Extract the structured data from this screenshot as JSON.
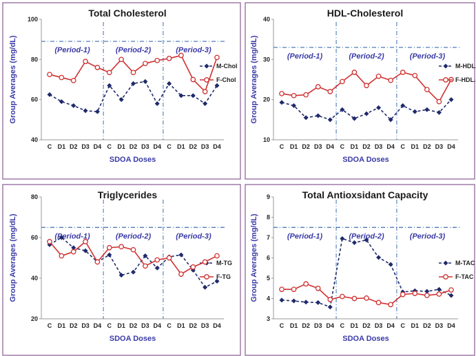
{
  "chart_data": [
    {
      "type": "line",
      "title": "Total Cholesterol",
      "xlabel": "SDOA Doses",
      "ylabel": "Group Averages (mg/dL)",
      "ylim": [
        40,
        100
      ],
      "yticks": [
        40,
        60,
        80,
        100
      ],
      "categories": [
        "C",
        "D1",
        "D2",
        "D3",
        "D4",
        "C",
        "D1",
        "D2",
        "D3",
        "D4",
        "C",
        "D1",
        "D2",
        "D3",
        "D4"
      ],
      "periods": [
        "(Period-1)",
        "(Period-2)",
        "(Period-3)"
      ],
      "reference_line": 89,
      "legend_position": "right",
      "series": [
        {
          "name": "M-Chol",
          "color": "#1f2a6b",
          "style": "dashed",
          "marker": "diamond",
          "values": [
            62.5,
            59,
            57,
            54.5,
            54,
            67,
            60,
            68,
            69,
            58,
            68,
            62,
            62,
            58,
            67
          ]
        },
        {
          "name": "F-Chol",
          "color": "#d03030",
          "style": "solid",
          "marker": "circle",
          "values": [
            72.5,
            71,
            69.5,
            79,
            76,
            73.5,
            80,
            73.5,
            78,
            79.5,
            80.5,
            82,
            70,
            64,
            81
          ]
        }
      ]
    },
    {
      "type": "line",
      "title": "HDL-Cholesterol",
      "xlabel": "SDOA Doses",
      "ylabel": "Group Averages (mg/dL)",
      "ylim": [
        10,
        40
      ],
      "yticks": [
        10,
        20,
        30,
        40
      ],
      "categories": [
        "C",
        "D1",
        "D2",
        "D3",
        "D4",
        "C",
        "D1",
        "D2",
        "D3",
        "D4",
        "C",
        "D1",
        "D2",
        "D3",
        "D4"
      ],
      "periods": [
        "(Period-1)",
        "(Period-2)",
        "(Period-3)"
      ],
      "reference_line": 33,
      "legend_position": "right",
      "series": [
        {
          "name": "M-HDL.C",
          "color": "#1f2a6b",
          "style": "dashed",
          "marker": "diamond",
          "values": [
            19.3,
            18.5,
            15.5,
            16,
            15,
            17.5,
            15.3,
            16.5,
            18,
            15,
            18.5,
            17,
            17.5,
            16.8,
            20
          ]
        },
        {
          "name": "F-HDL.C",
          "color": "#d03030",
          "style": "solid",
          "marker": "circle",
          "values": [
            21.5,
            21,
            21.2,
            23.2,
            22,
            24.5,
            26.8,
            23.5,
            25.8,
            24.8,
            26.8,
            26,
            22.5,
            19.5,
            25
          ]
        }
      ]
    },
    {
      "type": "line",
      "title": "Triglycerides",
      "xlabel": "SDOA Doses",
      "ylabel": "Group Averages (mg/dL)",
      "ylim": [
        20,
        80
      ],
      "yticks": [
        20,
        40,
        60,
        80
      ],
      "categories": [
        "C",
        "D1",
        "D2",
        "D3",
        "D4",
        "C",
        "D1",
        "D2",
        "D3",
        "D4",
        "C",
        "D1",
        "D2",
        "D3",
        "D4"
      ],
      "periods": [
        "(Period-1)",
        "(Period-2)",
        "(Period-3)"
      ],
      "reference_line": 65,
      "legend_position": "right",
      "series": [
        {
          "name": "M-TG",
          "color": "#1f2a6b",
          "style": "dashed",
          "marker": "diamond",
          "values": [
            56.5,
            60,
            55,
            53.5,
            48,
            51.5,
            41.5,
            43,
            51,
            45,
            50.5,
            51.5,
            44,
            35.5,
            38.5
          ]
        },
        {
          "name": "F-TG",
          "color": "#d03030",
          "style": "solid",
          "marker": "circle",
          "values": [
            58,
            51,
            53,
            58,
            48,
            55,
            55.5,
            54,
            46,
            49,
            50,
            42,
            45.5,
            48,
            51
          ]
        }
      ]
    },
    {
      "type": "line",
      "title": "Total Antioxsidant Capacity",
      "xlabel": "SDOA Doses",
      "ylabel": "Group Averages (mg/dL)",
      "ylim": [
        3,
        9
      ],
      "yticks": [
        3,
        4,
        5,
        6,
        7,
        8,
        9
      ],
      "categories": [
        "C",
        "D1",
        "D2",
        "D3",
        "D4",
        "C",
        "D1",
        "D2",
        "D3",
        "D4",
        "C",
        "D1",
        "D2",
        "D3",
        "D4"
      ],
      "periods": [
        "(Period-1)",
        "(Period-2)",
        "(Period-3)"
      ],
      "reference_line": 7.5,
      "legend_position": "right",
      "series": [
        {
          "name": "M-TAC",
          "color": "#1f2a6b",
          "style": "dashed",
          "marker": "diamond",
          "values": [
            3.92,
            3.88,
            3.82,
            3.8,
            3.58,
            6.95,
            6.75,
            6.88,
            6.02,
            5.68,
            4.32,
            4.38,
            4.35,
            4.45,
            4.15
          ]
        },
        {
          "name": "F-TAC",
          "color": "#d03030",
          "style": "solid",
          "marker": "circle",
          "values": [
            4.45,
            4.45,
            4.72,
            4.5,
            3.95,
            4.1,
            4,
            4.02,
            3.8,
            3.7,
            4.2,
            4.25,
            4.15,
            4.22,
            4.42
          ]
        }
      ]
    }
  ]
}
